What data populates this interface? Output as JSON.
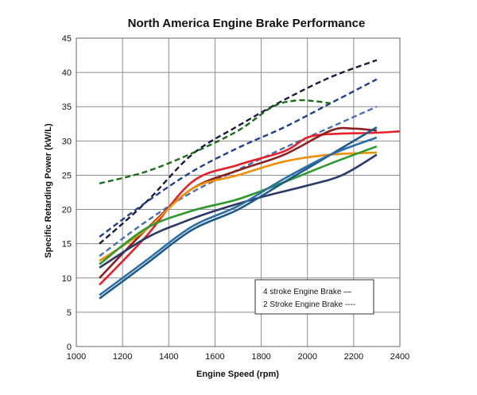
{
  "chart_data": {
    "type": "line",
    "title": "North America Engine Brake Performance",
    "xlabel": "Engine Speed (rpm)",
    "ylabel": "Specific Retarding Power (kW/L)",
    "xlim": [
      1000,
      2400
    ],
    "ylim": [
      0,
      45
    ],
    "x_ticks": [
      1000,
      1200,
      1400,
      1600,
      1800,
      2000,
      2200,
      2400
    ],
    "y_ticks": [
      0,
      5,
      10,
      15,
      20,
      25,
      30,
      35,
      40,
      45
    ],
    "grid": true,
    "legend": {
      "placement": "bottom-right",
      "entries": [
        "4 stroke Engine Brake —",
        "2 Stroke Engine Brake ----"
      ]
    },
    "series": [
      {
        "stroke": "2-stroke",
        "color": "#1a1a3a",
        "dash": true,
        "points": [
          [
            1100,
            15
          ],
          [
            1300,
            21
          ],
          [
            1500,
            28
          ],
          [
            1700,
            32.2
          ],
          [
            1900,
            36
          ],
          [
            2100,
            39.3
          ],
          [
            2300,
            41.8
          ]
        ]
      },
      {
        "stroke": "2-stroke",
        "color": "#1f3f8f",
        "dash": true,
        "points": [
          [
            1100,
            16
          ],
          [
            1300,
            21
          ],
          [
            1500,
            25.5
          ],
          [
            1700,
            29
          ],
          [
            1900,
            32
          ],
          [
            2100,
            35.5
          ],
          [
            2300,
            39
          ]
        ]
      },
      {
        "stroke": "2-stroke",
        "color": "#4a6fb5",
        "dash": true,
        "points": [
          [
            1100,
            13.2
          ],
          [
            1300,
            18.2
          ],
          [
            1500,
            22.5
          ],
          [
            1700,
            25.8
          ],
          [
            1900,
            29
          ],
          [
            2100,
            32
          ],
          [
            2300,
            35
          ]
        ]
      },
      {
        "stroke": "2-stroke",
        "color": "#1a6b1a",
        "dash": true,
        "points": [
          [
            1100,
            23.8
          ],
          [
            1300,
            25.5
          ],
          [
            1500,
            28.2
          ],
          [
            1700,
            31.5
          ],
          [
            1850,
            35
          ],
          [
            1950,
            35.9
          ],
          [
            2030,
            35.8
          ],
          [
            2100,
            35.5
          ]
        ]
      },
      {
        "stroke": "4-stroke",
        "color": "#e8202a",
        "dash": false,
        "points": [
          [
            1100,
            9
          ],
          [
            1300,
            16
          ],
          [
            1500,
            24
          ],
          [
            1700,
            26.5
          ],
          [
            1900,
            28.5
          ],
          [
            2000,
            30.5
          ],
          [
            2100,
            31
          ],
          [
            2300,
            31.2
          ],
          [
            2400,
            31.4
          ]
        ]
      },
      {
        "stroke": "4-stroke",
        "color": "#8b2020",
        "dash": false,
        "points": [
          [
            1100,
            10
          ],
          [
            1300,
            17
          ],
          [
            1500,
            23
          ],
          [
            1700,
            25.7
          ],
          [
            1900,
            28
          ],
          [
            2100,
            31.5
          ],
          [
            2200,
            31.8
          ],
          [
            2300,
            31.5
          ]
        ]
      },
      {
        "stroke": "4-stroke",
        "color": "#f0900a",
        "dash": false,
        "points": [
          [
            1100,
            12.5
          ],
          [
            1300,
            17
          ],
          [
            1500,
            23
          ],
          [
            1700,
            25
          ],
          [
            1900,
            27
          ],
          [
            2100,
            28
          ],
          [
            2300,
            28.3
          ]
        ]
      },
      {
        "stroke": "4-stroke",
        "color": "#2e9a2e",
        "dash": false,
        "points": [
          [
            1100,
            12
          ],
          [
            1300,
            17.2
          ],
          [
            1500,
            19.8
          ],
          [
            1700,
            21.5
          ],
          [
            1900,
            24
          ],
          [
            2100,
            26.7
          ],
          [
            2300,
            29.2
          ]
        ]
      },
      {
        "stroke": "4-stroke",
        "color": "#2b3a67",
        "dash": false,
        "points": [
          [
            1100,
            11.5
          ],
          [
            1300,
            15.8
          ],
          [
            1450,
            18
          ],
          [
            1600,
            19.8
          ],
          [
            1800,
            21.8
          ],
          [
            2000,
            23.5
          ],
          [
            2150,
            25
          ],
          [
            2300,
            28
          ]
        ]
      },
      {
        "stroke": "4-stroke",
        "color": "#1d5a8a",
        "dash": false,
        "points": [
          [
            1100,
            7
          ],
          [
            1300,
            12
          ],
          [
            1500,
            17
          ],
          [
            1700,
            20
          ],
          [
            1900,
            24
          ],
          [
            2100,
            28
          ],
          [
            2300,
            32
          ]
        ]
      },
      {
        "stroke": "4-stroke",
        "color": "#2c6fa8",
        "dash": false,
        "points": [
          [
            1100,
            7.5
          ],
          [
            1300,
            12.5
          ],
          [
            1500,
            17.5
          ],
          [
            1700,
            20.5
          ],
          [
            1900,
            24.5
          ],
          [
            2100,
            28
          ],
          [
            2300,
            30.5
          ]
        ]
      }
    ]
  }
}
